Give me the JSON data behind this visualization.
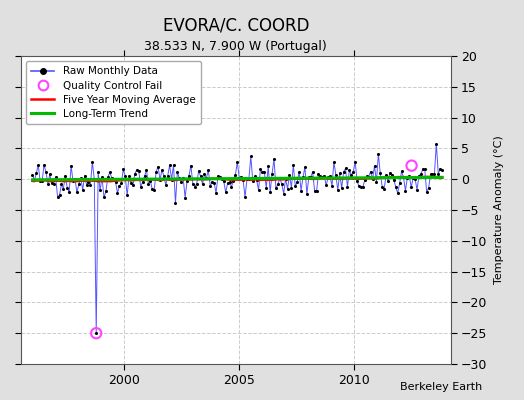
{
  "title": "EVORA/C. COORD",
  "subtitle": "38.533 N, 7.900 W (Portugal)",
  "ylabel": "Temperature Anomaly (°C)",
  "watermark": "Berkeley Earth",
  "xlim": [
    1995.5,
    2014.2
  ],
  "ylim": [
    -30,
    20
  ],
  "yticks": [
    -30,
    -25,
    -20,
    -15,
    -10,
    -5,
    0,
    5,
    10,
    15,
    20
  ],
  "xticks": [
    2000,
    2005,
    2010
  ],
  "bg_color": "#e0e0e0",
  "plot_bg_color": "#ffffff",
  "raw_color": "#5555ff",
  "dot_color": "#000000",
  "ma_color": "#ff0000",
  "trend_color": "#00bb00",
  "qc_color": "#ff44ff",
  "title_fontsize": 12,
  "subtitle_fontsize": 9,
  "label_fontsize": 8,
  "tick_fontsize": 9,
  "seed": 42,
  "spike_year": 1998.75,
  "spike_value": -25.0,
  "start_year": 1996.0,
  "end_year": 2013.83,
  "qc2_year": 2012.5,
  "qc2_value": 2.2
}
